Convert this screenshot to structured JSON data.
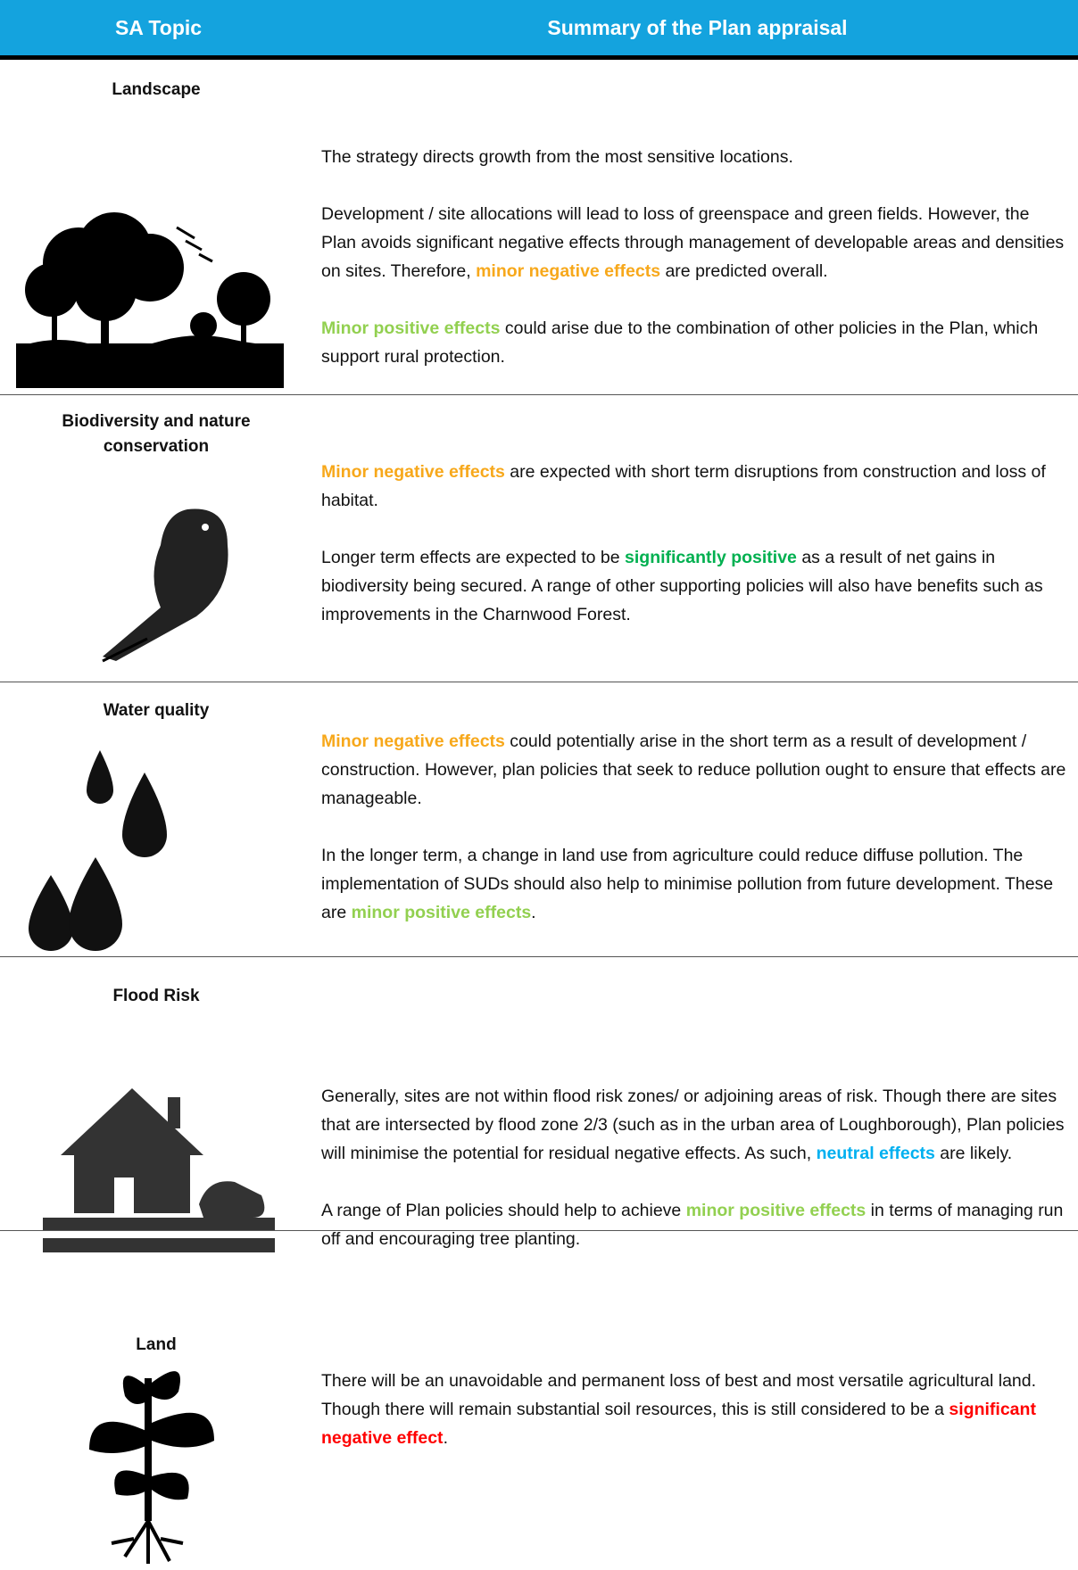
{
  "header": {
    "columns": [
      "SA Topic",
      "Summary of the Plan appraisal"
    ]
  },
  "rows": [
    {
      "topic": "Landscape",
      "paragraphs": [
        [
          "The strategy directs growth from the most sensitive locations."
        ],
        [
          "Development / site allocations will lead to loss of greenspace and green fields.  However, the Plan avoids significant negative effects through management of developable areas and densities on sites.  Therefore, ",
          {
            "text": "minor negative effects",
            "color": "#f7a81b"
          },
          " are predicted overall."
        ],
        [
          {
            "text": "Minor positive effects",
            "color": "#92d050"
          },
          " could arise due to the combination of other policies in the Plan, which support rural protection."
        ]
      ]
    },
    {
      "topic": "Biodiversity and nature conservation",
      "paragraphs": [
        [
          {
            "text": "Minor negative effects",
            "color": "#f7a81b"
          },
          " are expected with short term disruptions from construction and loss of habitat."
        ],
        [
          "Longer term effects are expected to be ",
          {
            "text": "significantly positive",
            "color": "#00b050"
          },
          " as a result of net gains in biodiversity being secured.  A range of other supporting policies will also have benefits such as improvements in the Charnwood Forest."
        ]
      ]
    },
    {
      "topic": "Water quality",
      "paragraphs": [
        [
          {
            "text": "Minor negative effects",
            "color": "#f7a81b"
          },
          " could potentially arise in the short term as a result of development / construction.  However, plan policies that seek to reduce pollution ought to ensure that effects are manageable."
        ],
        [
          "In the longer term, a change in land use from agriculture could reduce diffuse pollution. The implementation of SUDs should also help to minimise pollution from future development.  These are ",
          {
            "text": "minor positive effects",
            "color": "#92d050"
          },
          "."
        ]
      ]
    },
    {
      "topic": "Flood Risk",
      "paragraphs": [
        [
          "Generally, sites are not within flood risk zones/ or adjoining areas of risk. Though there are sites that are intersected by flood zone 2/3 (such as in the urban area of Loughborough), Plan policies will minimise the potential for residual negative effects.  As such, ",
          {
            "text": "neutral effects",
            "color": "#00b0f0"
          },
          " are likely."
        ],
        [
          "A range of Plan policies should help to achieve ",
          {
            "text": "minor positive effects",
            "color": "#92d050"
          },
          " in terms of managing run off and encouraging tree planting."
        ]
      ]
    },
    {
      "topic": "Land",
      "paragraphs": [
        [
          "There will be an unavoidable and permanent loss of best and most versatile agricultural land.  Though there will remain substantial soil resources, this is still considered to be a ",
          {
            "text": "significant negative effect",
            "color": "#ff0000"
          },
          "."
        ]
      ]
    }
  ]
}
